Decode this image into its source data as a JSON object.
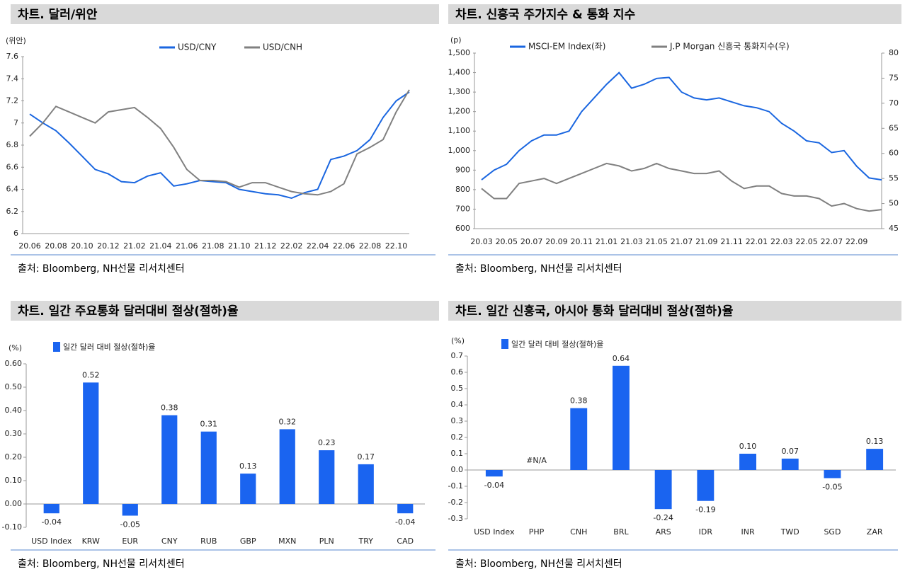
{
  "chart_data": [
    {
      "type": "line",
      "title": "차트. 달러/위안",
      "y_unit": "(위안)",
      "source": "출처: Bloomberg, NH선물 리서치센터",
      "categories": [
        "20.06",
        null,
        "20.08",
        null,
        "20.10",
        null,
        "20.12",
        null,
        "21.02",
        null,
        "21.04",
        null,
        "21.06",
        null,
        "21.08",
        null,
        "21.10",
        null,
        "21.12",
        null,
        "22.02",
        null,
        "22.04",
        null,
        "22.06",
        null,
        "22.08",
        null,
        "22.10",
        null
      ],
      "ylim": [
        6,
        7.6
      ],
      "yticks": [
        6,
        6.2,
        6.4,
        6.6,
        6.8,
        7,
        7.2,
        7.4,
        7.6
      ],
      "series": [
        {
          "name": "USD/CNY",
          "color": "#1a66e0",
          "values": [
            7.08,
            7.0,
            6.93,
            6.82,
            6.7,
            6.58,
            6.54,
            6.47,
            6.46,
            6.52,
            6.55,
            6.43,
            6.45,
            6.48,
            6.47,
            6.46,
            6.4,
            6.38,
            6.36,
            6.35,
            6.32,
            6.37,
            6.4,
            6.67,
            6.7,
            6.75,
            6.85,
            7.05,
            7.2,
            7.28
          ]
        },
        {
          "name": "USD/CNH",
          "color": "#808080",
          "values": [
            6.88,
            7.0,
            7.15,
            7.1,
            7.05,
            7.0,
            7.1,
            7.12,
            7.14,
            7.05,
            6.95,
            6.78,
            6.58,
            6.48,
            6.48,
            6.47,
            6.42,
            6.46,
            6.46,
            6.42,
            6.38,
            6.36,
            6.35,
            6.38,
            6.45,
            6.72,
            6.78,
            6.85,
            7.1,
            7.3
          ]
        }
      ]
    },
    {
      "type": "line",
      "title": "차트. 신흥국 주가지수 & 통화 지수",
      "y_unit": "(p)",
      "source": "출처: Bloomberg, NH선물 리서치센터",
      "categories": [
        "20.03",
        null,
        "20.05",
        null,
        "20.07",
        null,
        "20.09",
        null,
        "20.11",
        null,
        "21.01",
        null,
        "21.03",
        null,
        "21.05",
        null,
        "21.07",
        null,
        "21.09",
        null,
        "21.11",
        null,
        "22.01",
        null,
        "22.03",
        null,
        "22.05",
        null,
        "22.07",
        null,
        "22.09",
        null,
        null
      ],
      "ylim": [
        600,
        1500
      ],
      "yticks": [
        600,
        700,
        800,
        900,
        {
          "value": 1000,
          "label": "1,000"
        },
        {
          "value": 1100,
          "label": "1,100"
        },
        {
          "value": 1200,
          "label": "1,200"
        },
        {
          "value": 1300,
          "label": "1,300"
        },
        {
          "value": 1400,
          "label": "1,400"
        },
        {
          "value": 1500,
          "label": "1,500"
        }
      ],
      "y2lim": [
        45,
        80
      ],
      "y2ticks": [
        45,
        50,
        55,
        60,
        65,
        70,
        75,
        80
      ],
      "series": [
        {
          "name": "MSCI-EM Index(좌)",
          "color": "#1a66e0",
          "values": [
            850,
            900,
            930,
            1000,
            1050,
            1080,
            1080,
            1100,
            1200,
            1270,
            1340,
            1400,
            1320,
            1340,
            1370,
            1375,
            1300,
            1270,
            1260,
            1270,
            1250,
            1230,
            1220,
            1200,
            1140,
            1100,
            1050,
            1040,
            990,
            1000,
            920,
            860,
            850
          ]
        },
        {
          "name": "J.P Morgan 신흥국 통화지수(우)",
          "color": "#808080",
          "axis": "y2",
          "values": [
            53,
            51,
            51,
            54,
            54.5,
            55,
            54,
            55,
            56,
            57,
            58,
            57.5,
            56.5,
            57,
            58,
            57,
            56.5,
            56,
            56,
            56.5,
            54.5,
            53,
            53.5,
            53.5,
            52,
            51.5,
            51.5,
            51,
            49.5,
            50,
            49,
            48.5,
            48.8
          ]
        }
      ]
    },
    {
      "type": "bar",
      "title": "차트. 일간 주요통화 달러대비 절상(절하)율",
      "y_unit": "(%)",
      "source": "출처: Bloomberg, NH선물 리서치센터",
      "categories": [
        "USD Index",
        "KRW",
        "EUR",
        "CNY",
        "RUB",
        "GBP",
        "MXN",
        "PLN",
        "TRY",
        "CAD"
      ],
      "ylim": [
        -0.1,
        0.6
      ],
      "yticks": [
        {
          "value": -0.1,
          "label": "-0.10"
        },
        {
          "value": 0,
          "label": "0.00"
        },
        {
          "value": 0.1,
          "label": "0.10"
        },
        {
          "value": 0.2,
          "label": "0.20"
        },
        {
          "value": 0.3,
          "label": "0.30"
        },
        {
          "value": 0.4,
          "label": "0.40"
        },
        {
          "value": 0.5,
          "label": "0.50"
        },
        {
          "value": 0.6,
          "label": "0.60"
        }
      ],
      "series": [
        {
          "name": "일간 달러 대비 절상(절하)율",
          "color": "#1a64f0",
          "values": [
            -0.04,
            0.52,
            -0.05,
            0.38,
            0.31,
            0.13,
            0.32,
            0.23,
            0.17,
            -0.04
          ]
        }
      ]
    },
    {
      "type": "bar",
      "title": "차트. 일간 신흥국, 아시아 통화 달러대비 절상(절하)율",
      "y_unit": "(%)",
      "source": "출처: Bloomberg, NH선물 리서치센터",
      "categories": [
        "USD Index",
        "PHP",
        "CNH",
        "BRL",
        "ARS",
        "IDR",
        "INR",
        "TWD",
        "SGD",
        "ZAR"
      ],
      "ylim": [
        -0.3,
        0.7
      ],
      "yticks": [
        -0.3,
        -0.2,
        -0.1,
        {
          "value": 0,
          "label": "0.0"
        },
        0.1,
        0.2,
        0.3,
        0.4,
        0.5,
        0.6,
        0.7
      ],
      "series": [
        {
          "name": "일간 달러 대비 절상(절하)율",
          "color": "#1a64f0",
          "values": [
            -0.04,
            null,
            0.38,
            0.64,
            -0.24,
            -0.19,
            0.1,
            0.07,
            -0.05,
            0.13
          ],
          "value_labels": [
            "-0.04",
            "#N/A",
            "0.38",
            "0.64",
            "-0.24",
            "-0.19",
            "0.10",
            "0.07",
            "-0.05",
            "0.13"
          ]
        }
      ]
    }
  ]
}
